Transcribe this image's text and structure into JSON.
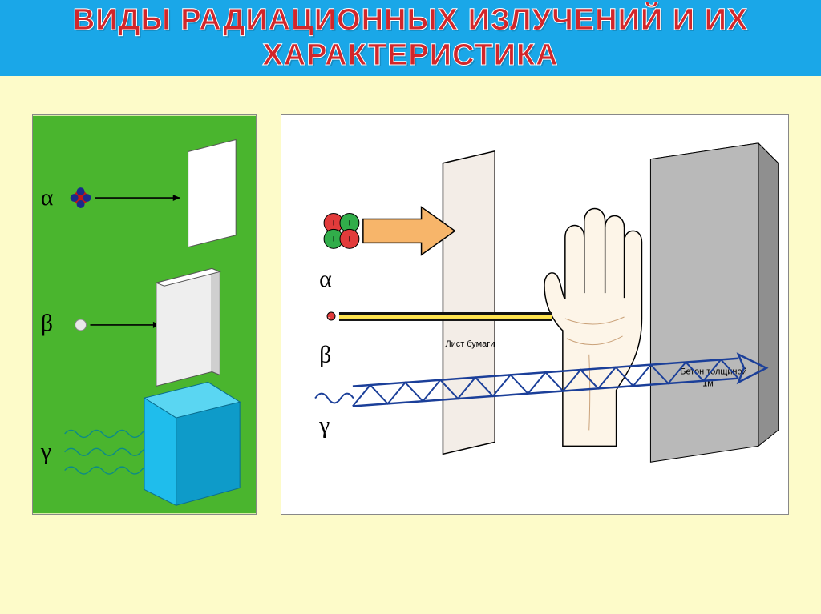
{
  "page": {
    "background_color": "#fdfbc9"
  },
  "title": {
    "text": "ВИДЫ РАДИАЦИОННЫХ ИЗЛУЧЕНИЙ И ИХ ХАРАКТЕРИСТИКА",
    "bar_color": "#1aa7e8",
    "text_color": "#d2262a",
    "text_stroke": "#ffffff",
    "fontsize": 38
  },
  "left_diagram": {
    "background_color": "#4ab52e",
    "symbols": {
      "alpha": "α",
      "beta": "β",
      "gamma": "γ"
    },
    "alpha": {
      "particle_fill": "#c01818",
      "particle_petal": "#1a2a8a",
      "arrow_color": "#000000",
      "sheet_fill": "#ffffff",
      "sheet_stroke": "#555555"
    },
    "beta": {
      "particle_fill": "#e8e8e8",
      "particle_stroke": "#888888",
      "arrow_color": "#000000",
      "sheet_fill": "#eeeeee",
      "sheet_stroke": "#555555"
    },
    "gamma": {
      "wave_color": "#0b8a8a",
      "cube_top": "#5ad6f2",
      "cube_front": "#1fbdec",
      "cube_side": "#0e9bc9",
      "cube_stroke": "#0a6e90"
    }
  },
  "right_diagram": {
    "background_color": "#ffffff",
    "symbols": {
      "alpha": "α",
      "beta": "β",
      "gamma": "γ"
    },
    "labels": {
      "paper": "Лист бумаги",
      "concrete_l1": "Бетон толщиной",
      "concrete_l2": "1м"
    },
    "paper_sheet": {
      "fill": "#f3ede7",
      "stroke": "#000000"
    },
    "hand": {
      "fill": "#fdf5e8",
      "stroke": "#000000",
      "palm_line": "#caa27a"
    },
    "concrete": {
      "top": "#d6d6d6",
      "front": "#b9b9b9",
      "side": "#8f8f8f",
      "stroke": "#000000"
    },
    "alpha_arrow": {
      "fill": "#f7b56a",
      "stroke": "#000000"
    },
    "alpha_nucleus": {
      "plus": "#e23b3b",
      "minus": "#31ad4a",
      "stroke": "#000000"
    },
    "beta_line": {
      "core": "#ffe450",
      "edge": "#111111"
    },
    "beta_particle": {
      "fill": "#e23b3b",
      "stroke": "#000000"
    },
    "gamma_truss": {
      "color": "#1b3f99"
    },
    "gamma_wave": {
      "color": "#1b3f99"
    }
  }
}
